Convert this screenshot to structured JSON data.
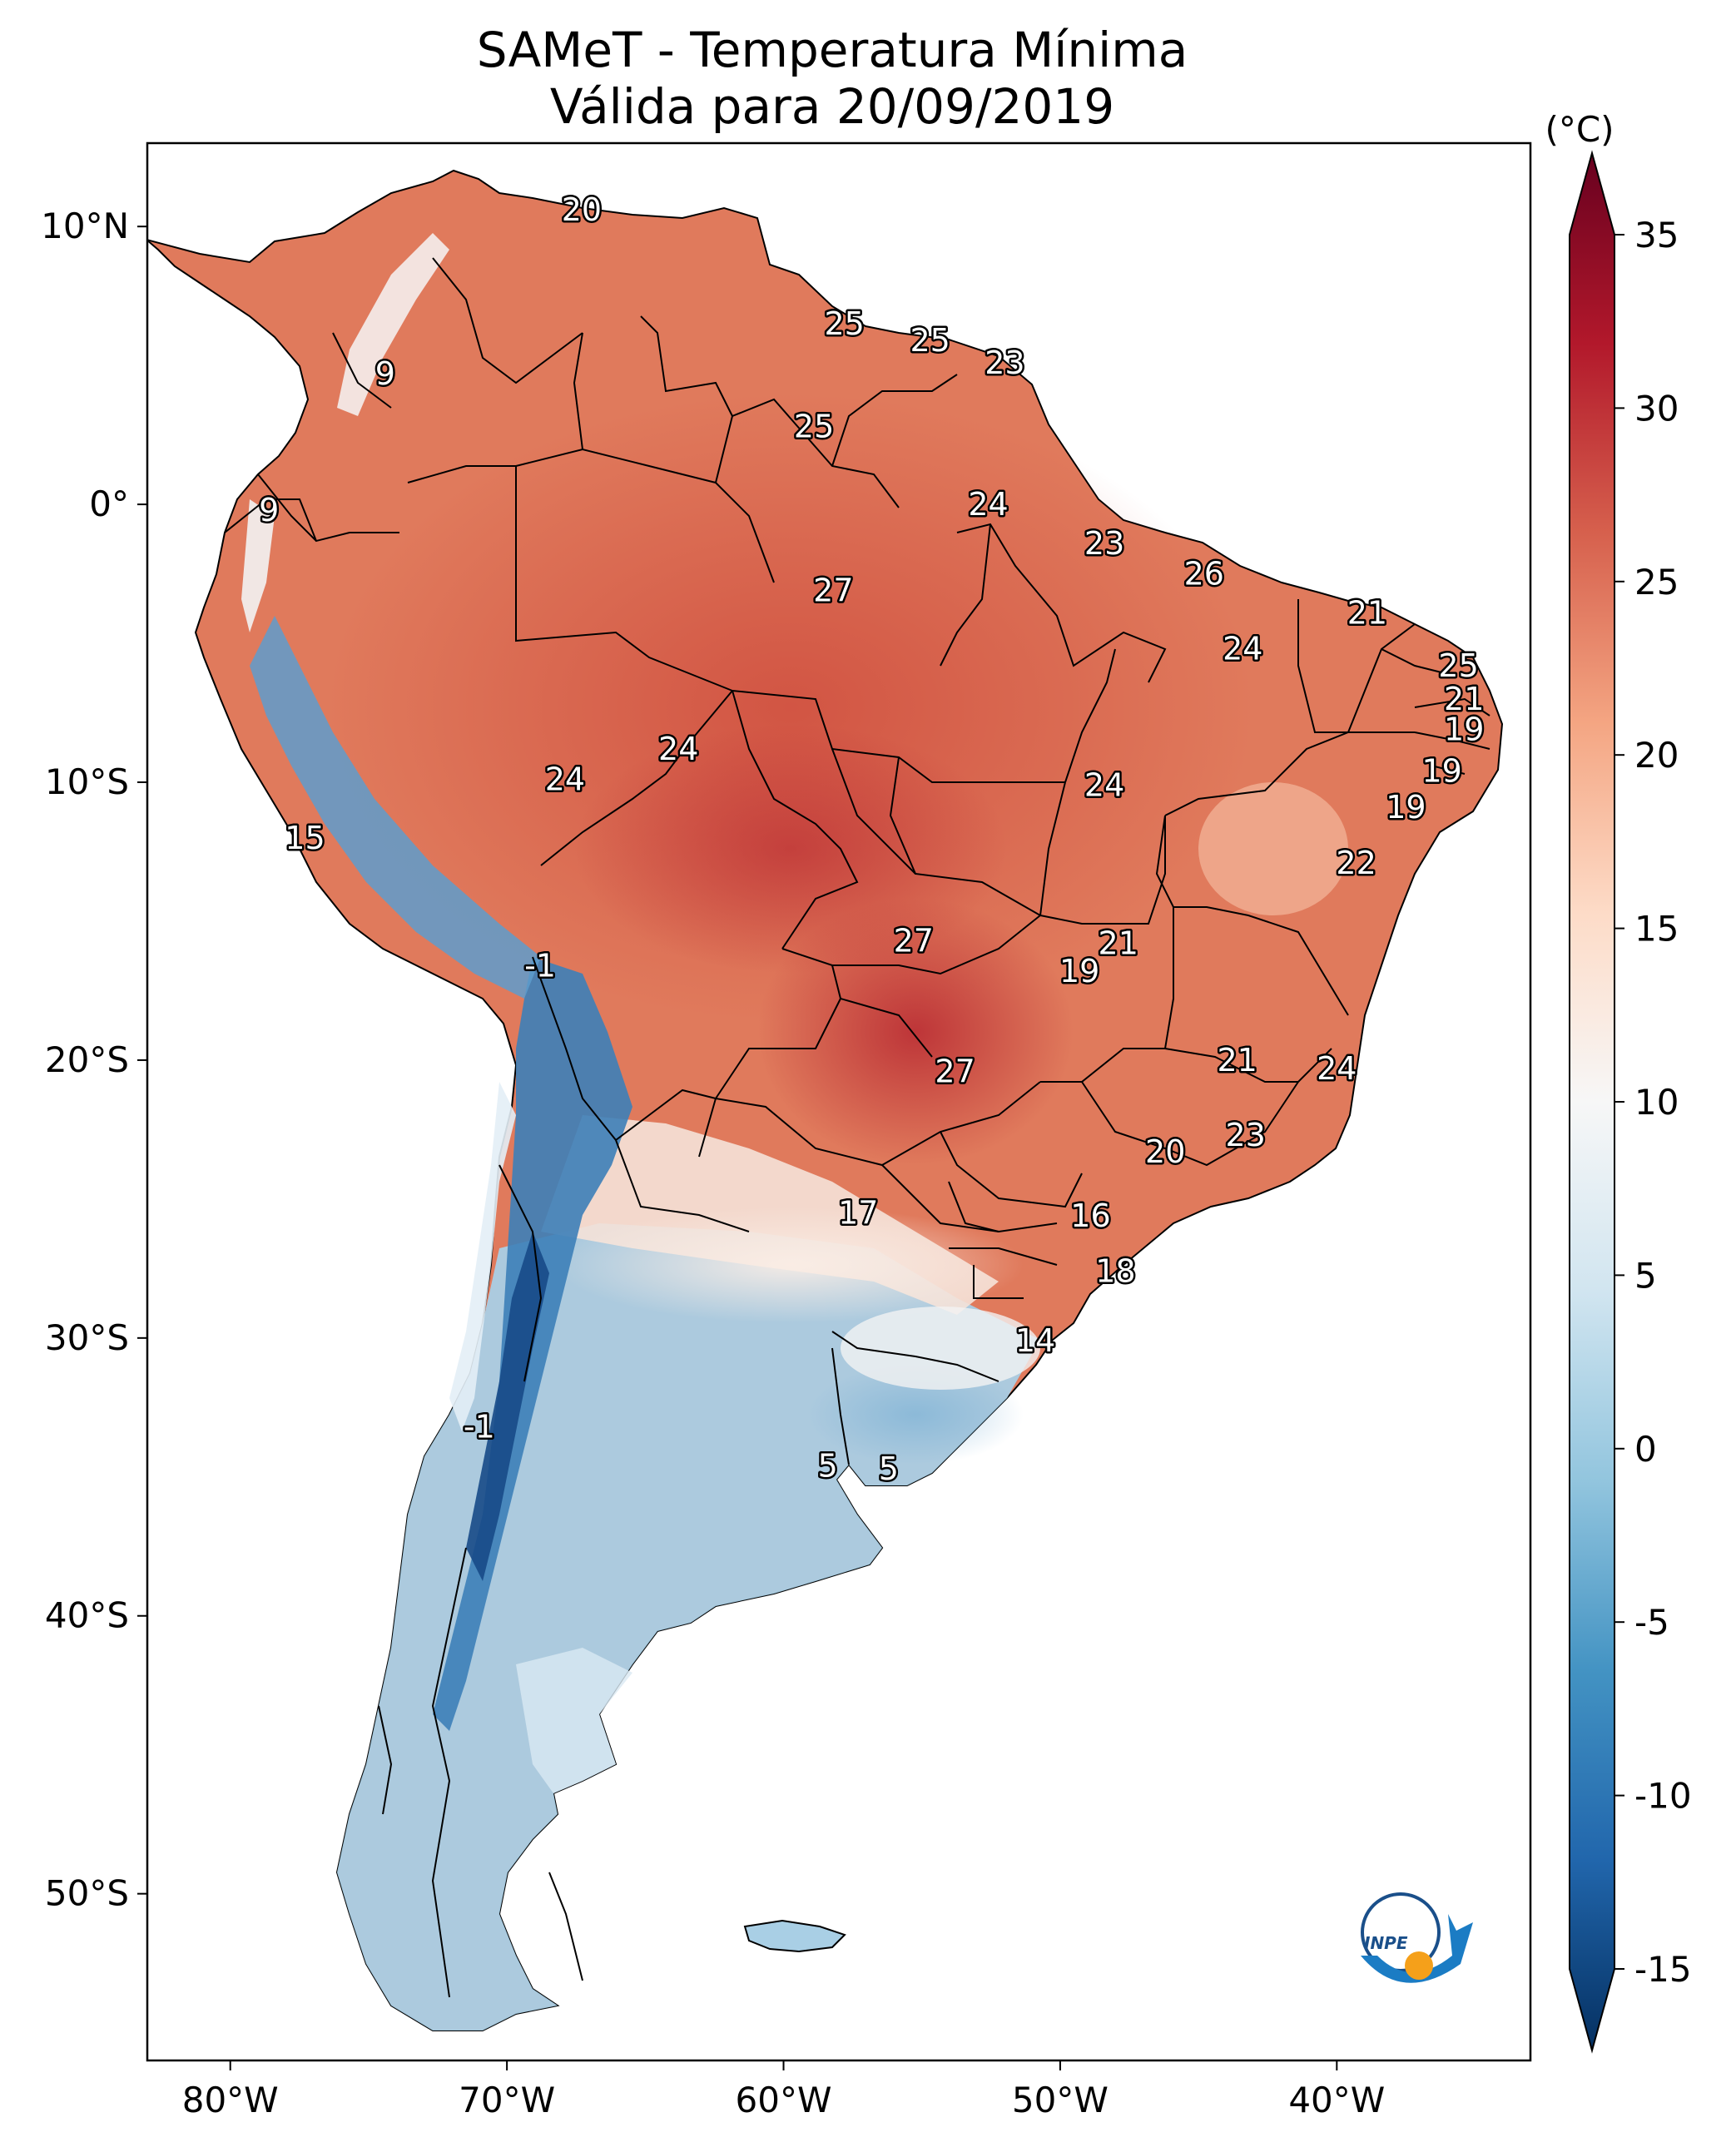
{
  "title": {
    "line1": "SAMeT - Temperatura Mínima",
    "line2": "Válida para 20/09/2019"
  },
  "map": {
    "lon_range": [
      -83,
      -33
    ],
    "lat_range": [
      -56,
      13
    ],
    "lon_ticks": [
      {
        "lon": -80,
        "label": "80°W"
      },
      {
        "lon": -70,
        "label": "70°W"
      },
      {
        "lon": -60,
        "label": "60°W"
      },
      {
        "lon": -50,
        "label": "50°W"
      },
      {
        "lon": -40,
        "label": "40°W"
      }
    ],
    "lat_ticks": [
      {
        "lat": 10,
        "label": "10°N"
      },
      {
        "lat": 0,
        "label": "0°"
      },
      {
        "lat": -10,
        "label": "10°S"
      },
      {
        "lat": -20,
        "label": "20°S"
      },
      {
        "lat": -30,
        "label": "30°S"
      },
      {
        "lat": -40,
        "label": "40°S"
      },
      {
        "lat": -50,
        "label": "50°S"
      }
    ]
  },
  "temperature_labels": [
    {
      "lon": -67.3,
      "lat": 10.6,
      "text": "20"
    },
    {
      "lon": -57.8,
      "lat": 6.5,
      "text": "25"
    },
    {
      "lon": -54.7,
      "lat": 5.9,
      "text": "25"
    },
    {
      "lon": -52.0,
      "lat": 5.1,
      "text": "23"
    },
    {
      "lon": -74.4,
      "lat": 4.7,
      "text": "9"
    },
    {
      "lon": -58.9,
      "lat": 2.8,
      "text": "25"
    },
    {
      "lon": -78.6,
      "lat": -0.2,
      "text": "9"
    },
    {
      "lon": -52.6,
      "lat": 0.0,
      "text": "24"
    },
    {
      "lon": -48.4,
      "lat": -1.4,
      "text": "23"
    },
    {
      "lon": -58.2,
      "lat": -3.1,
      "text": "27"
    },
    {
      "lon": -44.8,
      "lat": -2.5,
      "text": "26"
    },
    {
      "lon": -38.9,
      "lat": -3.9,
      "text": "21"
    },
    {
      "lon": -43.4,
      "lat": -5.2,
      "text": "24"
    },
    {
      "lon": -35.6,
      "lat": -5.8,
      "text": "25"
    },
    {
      "lon": -35.4,
      "lat": -7.0,
      "text": "21"
    },
    {
      "lon": -35.4,
      "lat": -8.1,
      "text": "19"
    },
    {
      "lon": -63.8,
      "lat": -8.8,
      "text": "24"
    },
    {
      "lon": -67.9,
      "lat": -9.9,
      "text": "24"
    },
    {
      "lon": -48.4,
      "lat": -10.1,
      "text": "24"
    },
    {
      "lon": -36.2,
      "lat": -9.6,
      "text": "19"
    },
    {
      "lon": -37.5,
      "lat": -10.9,
      "text": "19"
    },
    {
      "lon": -77.3,
      "lat": -12.0,
      "text": "15"
    },
    {
      "lon": -39.3,
      "lat": -12.9,
      "text": "22"
    },
    {
      "lon": -55.3,
      "lat": -15.7,
      "text": "27"
    },
    {
      "lon": -47.9,
      "lat": -15.8,
      "text": "21"
    },
    {
      "lon": -49.3,
      "lat": -16.8,
      "text": "19"
    },
    {
      "lon": -68.8,
      "lat": -16.6,
      "text": "-1"
    },
    {
      "lon": -43.6,
      "lat": -20.0,
      "text": "21"
    },
    {
      "lon": -40.0,
      "lat": -20.3,
      "text": "24"
    },
    {
      "lon": -53.8,
      "lat": -20.4,
      "text": "27"
    },
    {
      "lon": -43.3,
      "lat": -22.7,
      "text": "23"
    },
    {
      "lon": -46.2,
      "lat": -23.3,
      "text": "20"
    },
    {
      "lon": -57.3,
      "lat": -25.5,
      "text": "17"
    },
    {
      "lon": -48.9,
      "lat": -25.6,
      "text": "16"
    },
    {
      "lon": -48.0,
      "lat": -27.6,
      "text": "18"
    },
    {
      "lon": -50.9,
      "lat": -30.1,
      "text": "14"
    },
    {
      "lon": -71.0,
      "lat": -33.2,
      "text": "-1"
    },
    {
      "lon": -58.4,
      "lat": -34.6,
      "text": "5"
    },
    {
      "lon": -56.2,
      "lat": -34.7,
      "text": "5"
    }
  ],
  "colorbar": {
    "units": "(°C)",
    "min": -15,
    "max": 35,
    "ticks": [
      {
        "value": 35,
        "label": "35"
      },
      {
        "value": 30,
        "label": "30"
      },
      {
        "value": 25,
        "label": "25"
      },
      {
        "value": 20,
        "label": "20"
      },
      {
        "value": 15,
        "label": "15"
      },
      {
        "value": 10,
        "label": "10"
      },
      {
        "value": 5,
        "label": "5"
      },
      {
        "value": 0,
        "label": "0"
      },
      {
        "value": -5,
        "label": "-5"
      },
      {
        "value": -10,
        "label": "-10"
      },
      {
        "value": -15,
        "label": "-15"
      }
    ],
    "colormap": [
      "#053061",
      "#2166ac",
      "#4393c3",
      "#92c5de",
      "#d1e5f0",
      "#f7f7f7",
      "#fddbc7",
      "#f4a582",
      "#d6604d",
      "#b2182b",
      "#67001f"
    ]
  },
  "logo": {
    "text": "INPE"
  }
}
